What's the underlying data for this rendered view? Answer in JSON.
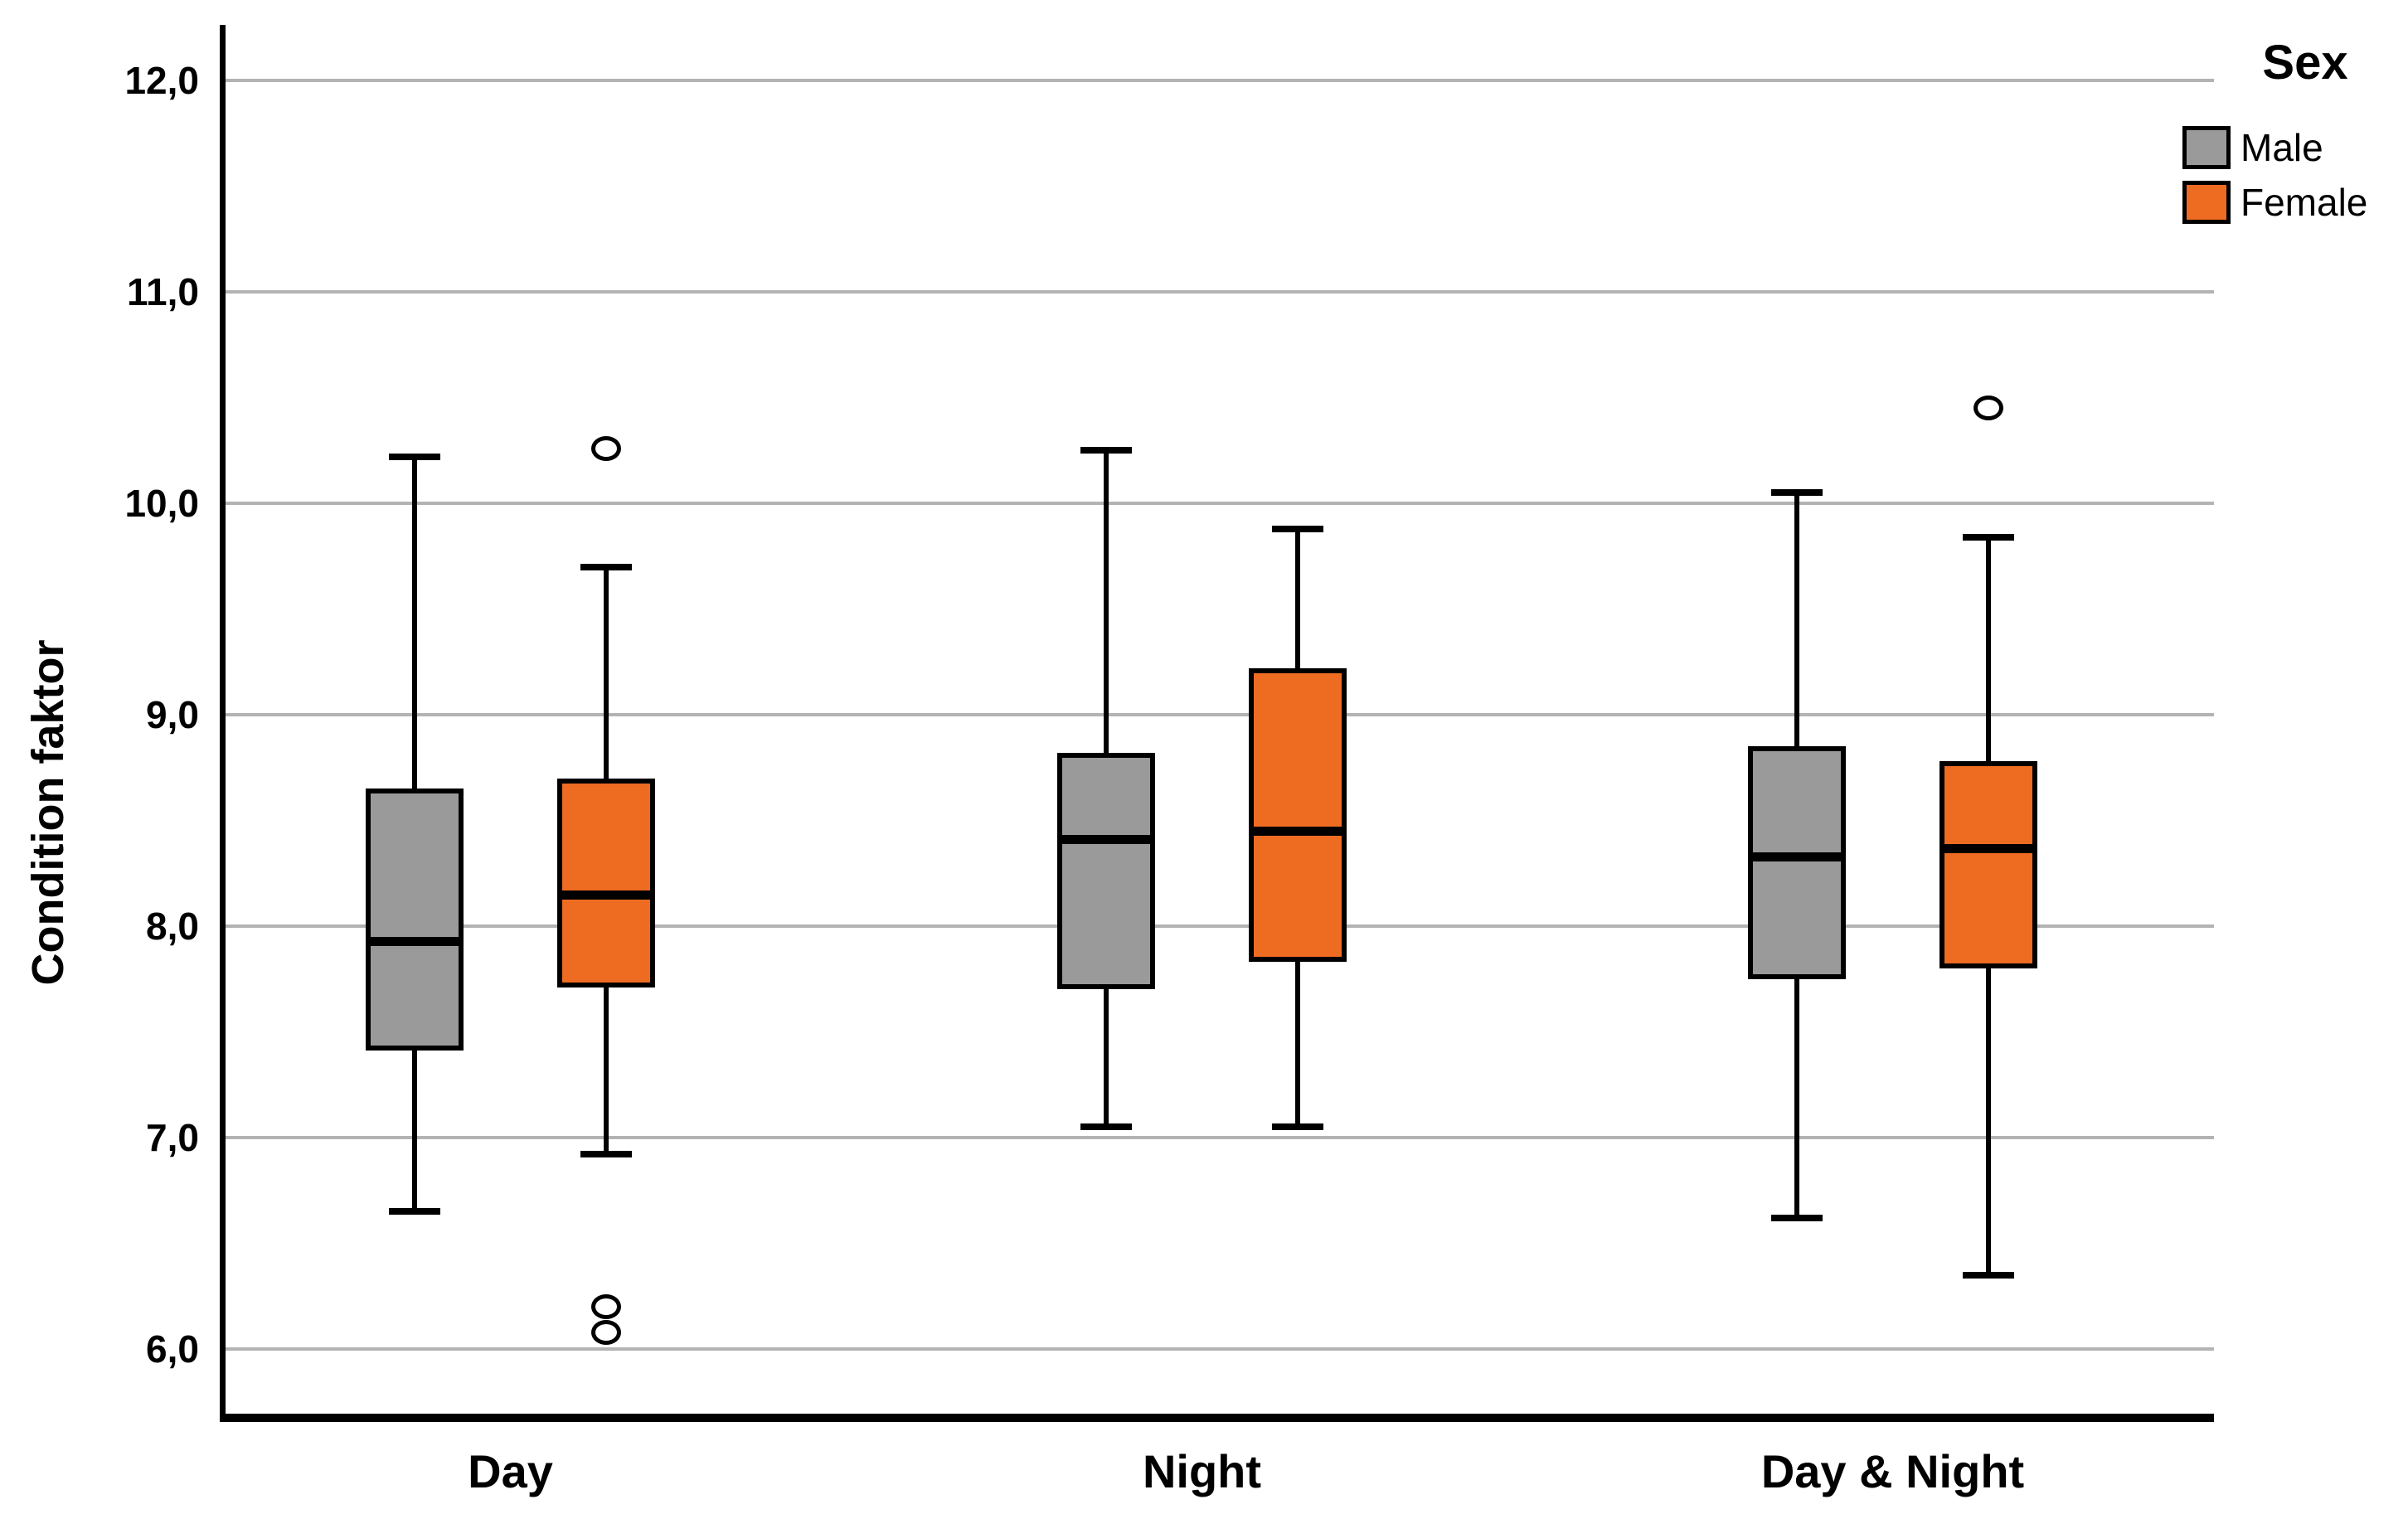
{
  "chart_data": {
    "type": "boxplot",
    "title": "",
    "xlabel": "",
    "ylabel": "Condition faktor",
    "legend_title": "Sex",
    "legend_position": "top-right",
    "grid": true,
    "ylim": [
      5.7,
      12.3
    ],
    "yticks": {
      "values": [
        12,
        11,
        10,
        9,
        8,
        7,
        6
      ],
      "labels": [
        "12,0",
        "11,0",
        "10,0",
        "9,0",
        "8,0",
        "7,0",
        "6,0"
      ]
    },
    "categories": [
      "Day",
      "Night",
      "Day & Night"
    ],
    "series": [
      {
        "name": "Male",
        "color": "#9a9a9a",
        "boxes": [
          {
            "category": "Day",
            "whisker_low": 6.65,
            "q1": 7.41,
            "median": 7.93,
            "q3": 8.65,
            "whisker_high": 10.22,
            "outliers": []
          },
          {
            "category": "Night",
            "whisker_low": 7.05,
            "q1": 7.7,
            "median": 8.41,
            "q3": 8.82,
            "whisker_high": 10.25,
            "outliers": []
          },
          {
            "category": "Day & Night",
            "whisker_low": 6.62,
            "q1": 7.75,
            "median": 8.33,
            "q3": 8.85,
            "whisker_high": 10.05,
            "outliers": []
          }
        ]
      },
      {
        "name": "Female",
        "color": "#ee6b22",
        "boxes": [
          {
            "category": "Day",
            "whisker_low": 6.92,
            "q1": 7.71,
            "median": 8.15,
            "q3": 8.7,
            "whisker_high": 9.7,
            "outliers": [
              10.26,
              6.2,
              6.08
            ]
          },
          {
            "category": "Night",
            "whisker_low": 7.05,
            "q1": 7.83,
            "median": 8.45,
            "q3": 9.22,
            "whisker_high": 9.88,
            "outliers": []
          },
          {
            "category": "Day & Night",
            "whisker_low": 6.35,
            "q1": 7.8,
            "median": 8.37,
            "q3": 8.78,
            "whisker_high": 9.84,
            "outliers": [
              10.45
            ]
          }
        ]
      }
    ]
  }
}
